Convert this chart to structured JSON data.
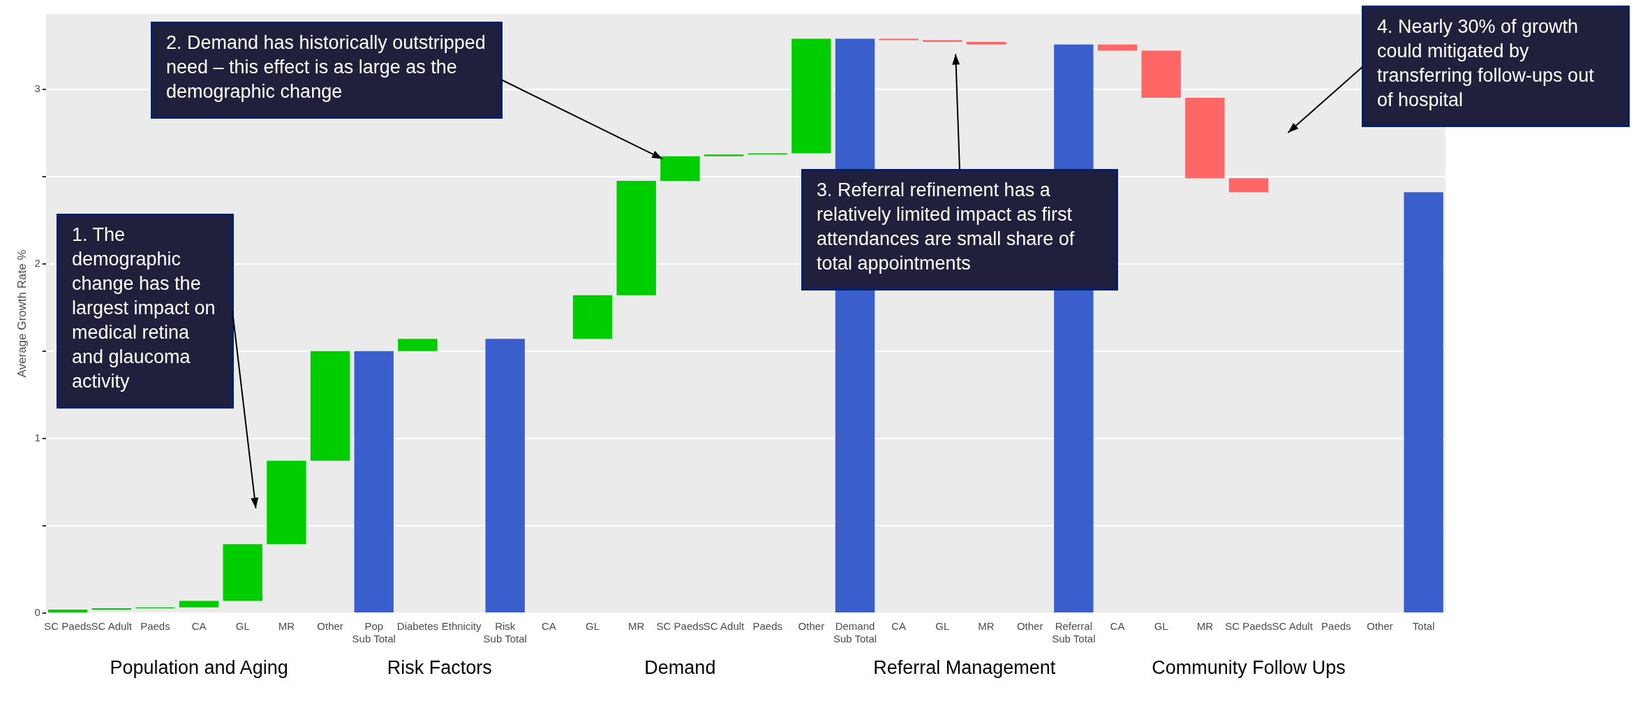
{
  "chart_data": {
    "type": "bar",
    "ylabel": "Average Growth Rate %",
    "categories": [
      "SC Paeds",
      "SC Adult",
      "Paeds",
      "CA",
      "GL",
      "MR",
      "Other",
      "Pop\nSub Total",
      "Diabetes",
      "Ethnicity",
      "Risk\nSub Total",
      "CA",
      "GL",
      "MR",
      "SC Paeds",
      "SC Adult",
      "Paeds",
      "Other",
      "Demand\nSub Total",
      "CA",
      "GL",
      "MR",
      "Other",
      "Referral\nSub Total",
      "CA",
      "GL",
      "MR",
      "SC Paeds",
      "SC Adult",
      "Paeds",
      "Other",
      "Total"
    ],
    "base": [
      0,
      0.02,
      0.028,
      0.033,
      0.07,
      0.395,
      0.872,
      0,
      1.5,
      null,
      0,
      null,
      1.57,
      1.82,
      2.475,
      2.615,
      2.625,
      2.632,
      0,
      3.288,
      3.28,
      3.27,
      null,
      0,
      3.255,
      3.22,
      2.95,
      2.49,
      null,
      null,
      null,
      0
    ],
    "values": [
      0.02,
      0.008,
      0.005,
      0.037,
      0.325,
      0.477,
      0.628,
      1.5,
      0.07,
      0,
      1.57,
      0,
      0.25,
      0.655,
      0.14,
      0.01,
      0.007,
      0.656,
      3.288,
      -0.008,
      -0.01,
      -0.015,
      0,
      3.255,
      -0.035,
      -0.27,
      -0.46,
      -0.08,
      0,
      0,
      0,
      2.41
    ],
    "colors": [
      "#00cd00",
      "#00cd00",
      "#00cd00",
      "#00cd00",
      "#00cd00",
      "#00cd00",
      "#00cd00",
      "#3a5fcd",
      "#00cd00",
      "#00cd00",
      "#3a5fcd",
      "#00cd00",
      "#00cd00",
      "#00cd00",
      "#00cd00",
      "#00cd00",
      "#00cd00",
      "#00cd00",
      "#3a5fcd",
      "#ff6666",
      "#ff6666",
      "#ff6666",
      "#ff6666",
      "#3a5fcd",
      "#ff6666",
      "#ff6666",
      "#ff6666",
      "#ff6666",
      "#ff6666",
      "#ff6666",
      "#ff6666",
      "#3a5fcd"
    ],
    "ylim": [
      0,
      3.43
    ],
    "yticks": [
      0,
      {
        "value": 0.5,
        "label": null
      },
      1,
      {
        "value": 1.5,
        "label": null
      },
      2,
      {
        "value": 2.5,
        "label": null
      },
      3
    ],
    "grid": "y",
    "legend": false,
    "annotations": [
      "Population and Aging",
      "Risk Factors",
      "Demand",
      "Referral Management",
      "Community Follow Ups",
      "1. The demographic change has the largest impact on medical retina and glaucoma activity",
      "2. Demand has historically outstripped need – this effect is as large as the demographic change",
      "3. Referral refinement has a relatively limited impact as first attendances are small share of total appointments",
      "4. Nearly 30% of growth could mitigated by transferring follow-ups out of hospital"
    ]
  }
}
